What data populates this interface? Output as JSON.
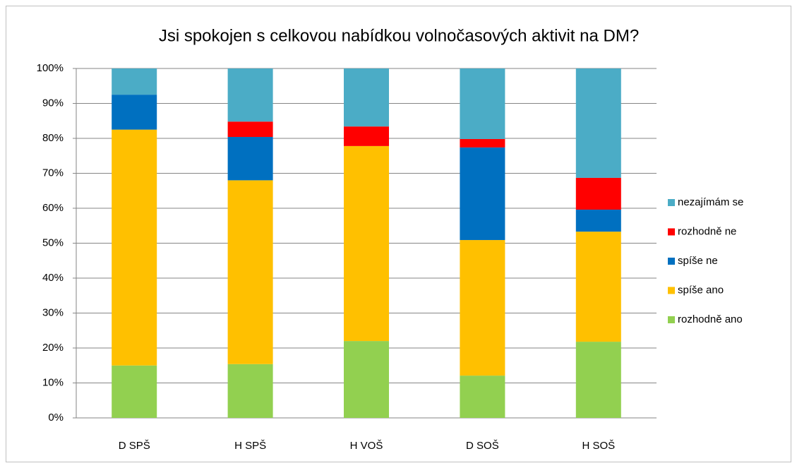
{
  "chart_data": {
    "type": "stacked_bar",
    "title": "Jsi spokojen s celkovou nabídkou volnočasových aktivit na DM?",
    "categories": [
      "D SPŠ",
      "H SPŠ",
      "H VOŠ",
      "D SOŠ",
      "H SOŠ"
    ],
    "series": [
      {
        "name": "rozhodně ano",
        "color": "#92d050",
        "values": [
          15,
          15.4,
          22,
          12.1,
          21.8
        ]
      },
      {
        "name": "spíše ano",
        "color": "#ffc000",
        "values": [
          67.5,
          52.6,
          55.8,
          38.8,
          31.5
        ]
      },
      {
        "name": "spíše ne",
        "color": "#0070c0",
        "values": [
          10,
          12.4,
          0,
          26.5,
          6.3
        ]
      },
      {
        "name": "rozhodně ne",
        "color": "#ff0000",
        "values": [
          0,
          4.4,
          5.6,
          2.4,
          9.1
        ]
      },
      {
        "name": "nezajímám se",
        "color": "#4bacc6",
        "values": [
          7.5,
          15.2,
          16.6,
          20.2,
          31.3
        ]
      }
    ],
    "ylim": [
      0,
      100
    ],
    "yticks": [
      {
        "value": 0,
        "label": "0%"
      },
      {
        "value": 10,
        "label": "10%"
      },
      {
        "value": 20,
        "label": "20%"
      },
      {
        "value": 30,
        "label": "30%"
      },
      {
        "value": 40,
        "label": "40%"
      },
      {
        "value": 50,
        "label": "50%"
      },
      {
        "value": 60,
        "label": "60%"
      },
      {
        "value": 70,
        "label": "70%"
      },
      {
        "value": 80,
        "label": "80%"
      },
      {
        "value": 90,
        "label": "90%"
      },
      {
        "value": 100,
        "label": "100%"
      }
    ],
    "grid": true,
    "legend": "right"
  }
}
